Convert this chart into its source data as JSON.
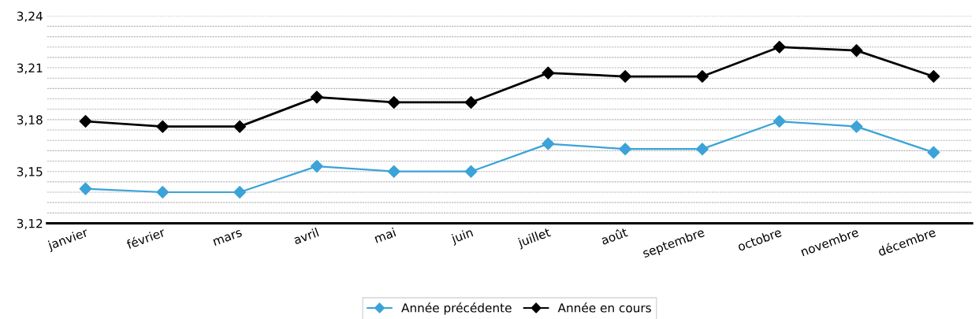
{
  "chart_data": {
    "type": "line",
    "categories": [
      "janvier",
      "février",
      "mars",
      "avril",
      "mai",
      "juin",
      "juillet",
      "août",
      "septembre",
      "octobre",
      "novembre",
      "décembre"
    ],
    "series": [
      {
        "name": "Année précédente",
        "color": "#3ba3d8",
        "values": [
          3.14,
          3.138,
          3.138,
          3.153,
          3.15,
          3.15,
          3.166,
          3.163,
          3.163,
          3.179,
          3.176,
          3.161
        ]
      },
      {
        "name": "Année en cours",
        "color": "#000000",
        "values": [
          3.179,
          3.176,
          3.176,
          3.193,
          3.19,
          3.19,
          3.207,
          3.205,
          3.205,
          3.222,
          3.22,
          3.205
        ]
      }
    ],
    "ylim": [
      3.12,
      3.24
    ],
    "yticks": [
      {
        "value": 3.12,
        "label": "3,12"
      },
      {
        "value": 3.126,
        "label": null
      },
      {
        "value": 3.132,
        "label": null
      },
      {
        "value": 3.138,
        "label": null
      },
      {
        "value": 3.144,
        "label": null
      },
      {
        "value": 3.15,
        "label": "3,15"
      },
      {
        "value": 3.156,
        "label": null
      },
      {
        "value": 3.162,
        "label": null
      },
      {
        "value": 3.168,
        "label": null
      },
      {
        "value": 3.174,
        "label": null
      },
      {
        "value": 3.18,
        "label": "3,18"
      },
      {
        "value": 3.186,
        "label": null
      },
      {
        "value": 3.192,
        "label": null
      },
      {
        "value": 3.198,
        "label": null
      },
      {
        "value": 3.204,
        "label": null
      },
      {
        "value": 3.21,
        "label": "3,21"
      },
      {
        "value": 3.216,
        "label": null
      },
      {
        "value": 3.222,
        "label": null
      },
      {
        "value": 3.228,
        "label": null
      },
      {
        "value": 3.234,
        "label": null
      },
      {
        "value": 3.24,
        "label": "3,24"
      }
    ],
    "grid": "y",
    "legend": "bottom",
    "marker": "diamond",
    "line_style": "solid"
  }
}
